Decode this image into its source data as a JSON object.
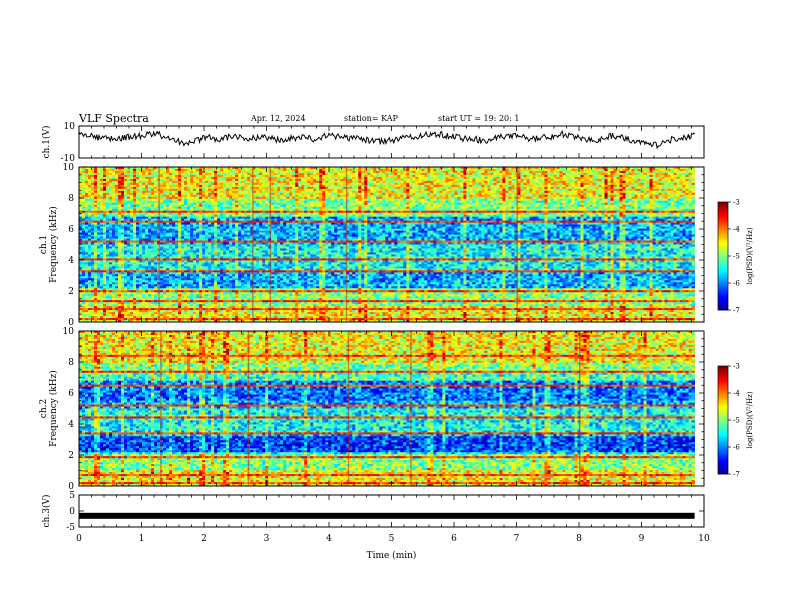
{
  "header": {
    "title": "VLF Spectra",
    "date": "Apr. 12, 2024",
    "station": "station= KAP",
    "start": "start  UT  =   19: 20: 1"
  },
  "chart_data": [
    {
      "type": "line",
      "panel": "ch1-waveform",
      "ylabel": "ch.1(V)",
      "ylim": [
        -10,
        10
      ],
      "yticks": [
        "10",
        "-10"
      ],
      "xlim": [
        0,
        10
      ],
      "x": [
        0,
        0.25,
        0.5,
        0.75,
        1.0,
        1.25,
        1.5,
        1.75,
        2.0,
        2.25,
        2.5,
        2.75,
        3.0,
        3.25,
        3.5,
        3.75,
        4.0,
        4.25,
        4.5,
        4.75,
        5.0,
        5.25,
        5.5,
        5.75,
        6.0,
        6.25,
        6.5,
        6.75,
        7.0,
        7.25,
        7.5,
        7.75,
        8.0,
        8.25,
        8.5,
        8.75,
        9.0,
        9.25,
        9.5,
        9.75,
        9.85
      ],
      "values": [
        5,
        3,
        2,
        3,
        4,
        5,
        1,
        -1,
        3,
        2,
        4,
        2,
        3,
        1,
        3,
        2,
        4,
        3,
        2,
        0,
        1,
        3,
        4,
        5,
        3,
        2,
        1,
        3,
        4,
        2,
        3,
        5,
        3,
        1,
        4,
        2,
        0,
        -2,
        2,
        3,
        5
      ]
    },
    {
      "type": "heatmap",
      "panel": "ch1-spectrogram",
      "ylabel": "Frequency (kHz)",
      "channel_label": "ch.1",
      "ylim": [
        0,
        10
      ],
      "yticks": [
        "0",
        "2",
        "4",
        "6",
        "8",
        "10"
      ],
      "xlim": [
        0,
        10
      ],
      "colorbar": {
        "label": "log(PSD)(V²/Hz)",
        "ticks": [
          "-3",
          "-4",
          "-5",
          "-6",
          "-7"
        ],
        "range": [
          -7,
          -3
        ]
      }
    },
    {
      "type": "heatmap",
      "panel": "ch2-spectrogram",
      "ylabel": "Frequency (kHz)",
      "channel_label": "ch.2",
      "ylim": [
        0,
        10
      ],
      "yticks": [
        "0",
        "2",
        "4",
        "6",
        "8",
        "10"
      ],
      "xlim": [
        0,
        10
      ],
      "colorbar": {
        "label": "log(PSD)(V²/Hz)",
        "ticks": [
          "-3",
          "-4",
          "-5",
          "-6",
          "-7"
        ],
        "range": [
          -7,
          -3
        ]
      }
    },
    {
      "type": "line",
      "panel": "ch3-waveform",
      "ylabel": "ch.3(V)",
      "ylim": [
        -5,
        5
      ],
      "yticks": [
        "5",
        "0",
        "-5"
      ],
      "xlim": [
        0,
        10
      ],
      "x": [
        0,
        9.85
      ],
      "values": [
        -1.5,
        -1.5
      ]
    }
  ],
  "xaxis": {
    "label": "Time  (min)",
    "ticks": [
      "0",
      "1",
      "2",
      "3",
      "4",
      "5",
      "6",
      "7",
      "8",
      "9",
      "10"
    ]
  },
  "colors": {
    "colormap": [
      "#00008f",
      "#0000ff",
      "#0080ff",
      "#00ffff",
      "#80ff80",
      "#ffff00",
      "#ff8000",
      "#ff0000",
      "#800000"
    ],
    "ink": "#000000"
  }
}
